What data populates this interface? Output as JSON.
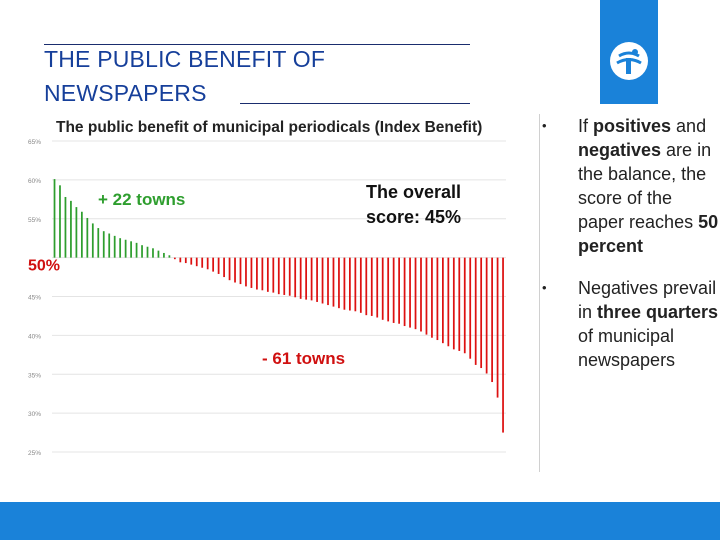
{
  "slide": {
    "title_line1": "THE PUBLIC BENEFIT OF",
    "title_line2": "NEWSPAPERS"
  },
  "bullets": [
    {
      "segments": [
        {
          "t": "If ",
          "b": false
        },
        {
          "t": "positives",
          "b": true
        },
        {
          "t": " and ",
          "b": false
        },
        {
          "t": "negatives",
          "b": true
        },
        {
          "t": " are in the balance, the score of the paper reaches ",
          "b": false
        },
        {
          "t": "50 percent",
          "b": true
        }
      ]
    },
    {
      "segments": [
        {
          "t": "Negatives prevail in ",
          "b": false
        },
        {
          "t": "three quarters",
          "b": true
        },
        {
          "t": " of municipal newspapers",
          "b": false
        }
      ]
    }
  ],
  "colors": {
    "positive": "#2e9e2e",
    "negative": "#dd1111",
    "brand_blue": "#1a82d9"
  },
  "chart_data": {
    "type": "bar",
    "title": "The public benefit of municipal periodicals (Index Benefit)",
    "ylim": [
      25,
      65
    ],
    "yticks": [
      "65%",
      "60%",
      "55%",
      "50%",
      "45%",
      "40%",
      "35%",
      "30%",
      "25%"
    ],
    "ytick_values": [
      65,
      60,
      55,
      50,
      45,
      40,
      35,
      30,
      25
    ],
    "baseline": 50,
    "baseline_label": "50%",
    "positive_label": "+ 22 towns",
    "negative_label": "- 61 towns",
    "overall_line1": "The overall",
    "overall_line2": "score: 45%",
    "values": [
      60.1,
      59.3,
      57.8,
      57.3,
      56.5,
      55.9,
      55.1,
      54.4,
      53.8,
      53.4,
      53.1,
      52.8,
      52.5,
      52.3,
      52.1,
      51.9,
      51.6,
      51.4,
      51.2,
      50.9,
      50.6,
      50.3,
      49.8,
      49.4,
      49.3,
      49.1,
      48.9,
      48.7,
      48.5,
      48.2,
      47.9,
      47.5,
      47.1,
      46.8,
      46.6,
      46.3,
      46.1,
      45.9,
      45.8,
      45.6,
      45.5,
      45.3,
      45.2,
      45.1,
      44.9,
      44.7,
      44.6,
      44.5,
      44.3,
      44.1,
      43.9,
      43.7,
      43.5,
      43.3,
      43.2,
      43.1,
      42.9,
      42.6,
      42.5,
      42.3,
      42.0,
      41.8,
      41.6,
      41.5,
      41.2,
      41.0,
      40.8,
      40.5,
      40.1,
      39.7,
      39.4,
      39.0,
      38.6,
      38.2,
      38.0,
      37.7,
      37.0,
      36.2,
      35.8,
      35.1,
      34.0,
      32.0,
      27.5
    ]
  }
}
